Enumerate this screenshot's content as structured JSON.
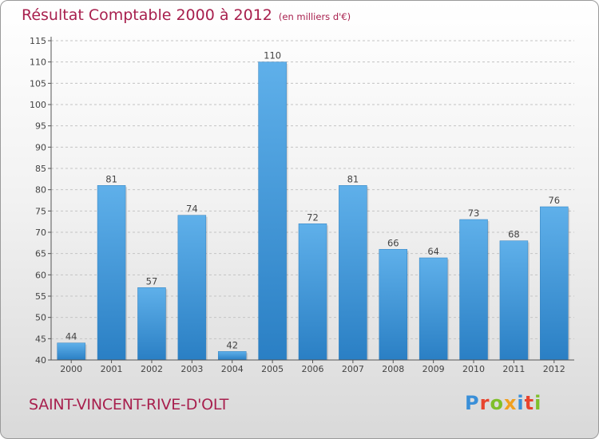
{
  "header": {
    "title": "Résultat Comptable 2000 à 2012",
    "subtitle": "(en milliers d'€)"
  },
  "footer": {
    "commune": "SAINT-VINCENT-RIVE-D'OLT",
    "logo_text": "Proxiti",
    "logo_letters": [
      "P",
      "r",
      "o",
      "x",
      "i",
      "t",
      "i"
    ],
    "logo_colors": [
      "#3a8fd8",
      "#e8442e",
      "#7fbf2a",
      "#f0a020",
      "#3a8fd8",
      "#e8442e",
      "#7fbf2a"
    ]
  },
  "chart_data": {
    "type": "bar",
    "categories": [
      "2000",
      "2001",
      "2002",
      "2003",
      "2004",
      "2005",
      "2006",
      "2007",
      "2008",
      "2009",
      "2010",
      "2011",
      "2012"
    ],
    "values": [
      44,
      81,
      57,
      74,
      42,
      110,
      72,
      81,
      66,
      64,
      73,
      68,
      76
    ],
    "title": "Résultat Comptable 2000 à 2012",
    "subtitle": "(en milliers d'€)",
    "xlabel": "",
    "ylabel": "",
    "ylim": [
      40,
      115
    ],
    "yticks": [
      40,
      45,
      50,
      55,
      60,
      65,
      70,
      75,
      80,
      85,
      90,
      95,
      100,
      105,
      110,
      115
    ],
    "grid": "horizontal dashed",
    "bar_color": "#4b9fdf"
  }
}
